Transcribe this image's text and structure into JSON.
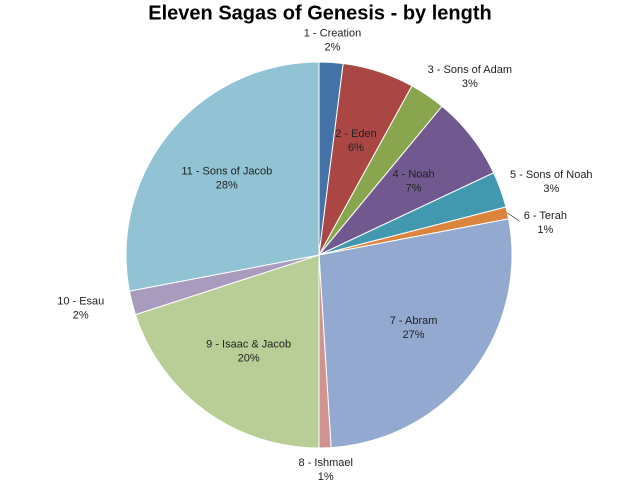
{
  "chart_data": {
    "type": "pie",
    "title": "Eleven Sagas of Genesis - by length",
    "categories": [
      "1 - Creation",
      "2 - Eden",
      "3 - Sons of Adam",
      "4 - Noah",
      "5 - Sons of Noah",
      "6 - Terah",
      "7 - Abram",
      "8 - Ishmael",
      "9 - Isaac & Jacob",
      "10 - Esau",
      "11 - Sons of Jacob"
    ],
    "values": [
      2,
      6,
      3,
      7,
      3,
      1,
      27,
      1,
      20,
      2,
      28
    ],
    "value_labels": [
      "2%",
      "6%",
      "3%",
      "7%",
      "3%",
      "1%",
      "27%",
      "1%",
      "20%",
      "2%",
      "28%"
    ],
    "colors": [
      "#4572A7",
      "#AA4643",
      "#89A54E",
      "#71588F",
      "#4198AF",
      "#DB843D",
      "#93A9CF",
      "#D19392",
      "#B9CD96",
      "#A99BBD",
      "#91C3D5"
    ]
  }
}
